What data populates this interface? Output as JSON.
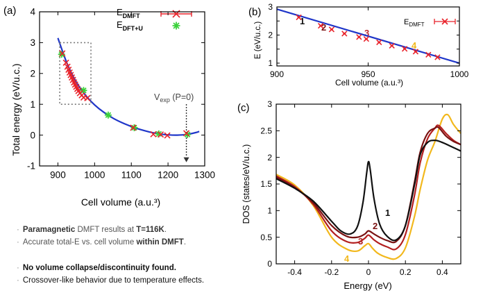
{
  "panel_a": {
    "label": "(a)",
    "ylabel": "Total energy (eV/u.c.)",
    "xlabel": "Cell volume (a.u.³)",
    "legend": [
      "E",
      "DMFT",
      "E",
      "DFT+U"
    ],
    "vexp_annotation": [
      "V",
      "exp",
      " (P=0)"
    ]
  },
  "panel_b": {
    "label": "(b)",
    "ylabel": "E (eV/u.c.)",
    "xlabel": "Cell volume (a.u.³)",
    "legend": [
      "E",
      "DMFT"
    ],
    "point_labels": [
      "1",
      "2",
      "3",
      "4"
    ]
  },
  "panel_c": {
    "label": "(c)",
    "ylabel": "DOS (states/eV/u.c.)",
    "xlabel": "Energy (eV)",
    "curve_labels": [
      "1",
      "2",
      "3",
      "4"
    ]
  },
  "notes": {
    "line1_bold": "Paramagnetic",
    "line1_mid": " DMFT results at ",
    "line1_end_bold": "T=116K",
    "line1_tail": ".",
    "line2_start": "Accurate total-E vs. cell volume ",
    "line2_bold": "within DMFT",
    "line2_tail": ".",
    "line3_bold": "No volume collapse/discontinuity found.",
    "line4": "Crossover-like behavior due to temperature effects."
  },
  "colors": {
    "dmft_marker": "#e8222a",
    "dft_marker": "#3ad13a",
    "fit_line": "#1f36c9",
    "curve1": "#111111",
    "curve2": "#7a1212",
    "curve3": "#b31f1f",
    "curve4": "#f2b81d"
  },
  "chart_data": [
    {
      "type": "scatter",
      "panel": "a",
      "xlim": [
        850,
        1300
      ],
      "ylim": [
        -1,
        4
      ],
      "xticks": [
        900,
        1000,
        1100,
        1200,
        1300
      ],
      "yticks": [
        -1,
        0,
        1,
        2,
        3,
        4
      ],
      "series": [
        {
          "name": "EDMFT",
          "x": [
            912,
            922,
            926,
            929,
            932,
            935,
            938,
            941,
            944,
            947,
            950,
            953,
            956,
            960,
            965,
            970,
            980,
            1105,
            1160,
            1180,
            1198,
            1250
          ],
          "y": [
            2.65,
            2.35,
            2.22,
            2.12,
            2.03,
            1.95,
            1.87,
            1.79,
            1.71,
            1.64,
            1.57,
            1.5,
            1.43,
            1.36,
            1.29,
            1.22,
            1.2,
            0.24,
            0.03,
            0.02,
            -0.01,
            0.06
          ]
        },
        {
          "name": "EDFT+U",
          "x": [
            910,
            970,
            1037,
            1108,
            1175,
            1253
          ],
          "y": [
            2.62,
            1.45,
            0.65,
            0.24,
            0.04,
            0.02
          ]
        },
        {
          "name": "fit",
          "x": [
            900,
            925,
            950,
            975,
            1000,
            1025,
            1050,
            1075,
            1100,
            1125,
            1150,
            1175,
            1200,
            1225,
            1250,
            1275,
            1285
          ],
          "y": [
            3.15,
            2.32,
            1.72,
            1.3,
            0.98,
            0.74,
            0.55,
            0.4,
            0.28,
            0.18,
            0.1,
            0.04,
            0.01,
            0.0,
            0.02,
            0.08,
            0.12
          ]
        }
      ],
      "inset_box": {
        "x": [
          905,
          990
        ],
        "y": [
          1.0,
          3.0
        ]
      },
      "vexp": 1250
    },
    {
      "type": "scatter",
      "panel": "b",
      "xlim": [
        900,
        1000
      ],
      "ylim": [
        0.9,
        3.0
      ],
      "xticks": [
        900,
        950,
        1000
      ],
      "yticks": [
        1,
        1.5,
        2,
        2.5,
        3
      ],
      "series": [
        {
          "name": "EDMFT",
          "x": [
            912,
            924,
            930,
            937,
            945,
            949,
            956,
            963,
            970,
            976,
            983,
            988
          ],
          "y": [
            2.63,
            2.33,
            2.2,
            2.05,
            1.93,
            1.86,
            1.74,
            1.62,
            1.51,
            1.41,
            1.3,
            1.21
          ]
        },
        {
          "name": "fit",
          "x": [
            900,
            1000
          ],
          "y": [
            2.92,
            1.0
          ]
        }
      ]
    },
    {
      "type": "line",
      "panel": "c",
      "xlim": [
        -0.5,
        0.5
      ],
      "ylim": [
        0,
        3
      ],
      "xticks": [
        -0.4,
        -0.2,
        0,
        0.2,
        0.4
      ],
      "yticks": [
        0,
        0.5,
        1,
        1.5,
        2,
        2.5,
        3
      ],
      "series": [
        {
          "name": "1",
          "x": [
            -0.5,
            -0.4,
            -0.3,
            -0.2,
            -0.15,
            -0.1,
            -0.06,
            -0.03,
            -0.01,
            0.0,
            0.01,
            0.03,
            0.06,
            0.1,
            0.15,
            0.2,
            0.25,
            0.28,
            0.32,
            0.36,
            0.4,
            0.45,
            0.5
          ],
          "y": [
            1.6,
            1.42,
            1.18,
            0.8,
            0.62,
            0.56,
            0.7,
            1.15,
            1.7,
            1.92,
            1.75,
            1.22,
            0.75,
            0.52,
            0.45,
            0.72,
            1.5,
            2.05,
            2.28,
            2.32,
            2.28,
            2.2,
            2.12
          ]
        },
        {
          "name": "2",
          "x": [
            -0.5,
            -0.4,
            -0.3,
            -0.2,
            -0.12,
            -0.06,
            -0.02,
            0.0,
            0.03,
            0.06,
            0.1,
            0.15,
            0.2,
            0.25,
            0.28,
            0.32,
            0.36,
            0.38,
            0.42,
            0.46,
            0.5
          ],
          "y": [
            1.63,
            1.43,
            1.15,
            0.72,
            0.52,
            0.5,
            0.56,
            0.62,
            0.56,
            0.5,
            0.44,
            0.42,
            0.72,
            1.55,
            2.1,
            2.45,
            2.55,
            2.56,
            2.4,
            2.3,
            2.24
          ]
        },
        {
          "name": "3",
          "x": [
            -0.5,
            -0.4,
            -0.3,
            -0.2,
            -0.12,
            -0.06,
            -0.02,
            0.0,
            0.03,
            0.06,
            0.1,
            0.15,
            0.2,
            0.25,
            0.28,
            0.32,
            0.36,
            0.38,
            0.42,
            0.46,
            0.5
          ],
          "y": [
            1.65,
            1.45,
            1.12,
            0.62,
            0.42,
            0.4,
            0.48,
            0.54,
            0.45,
            0.38,
            0.32,
            0.28,
            0.55,
            1.3,
            1.9,
            2.35,
            2.55,
            2.6,
            2.45,
            2.32,
            2.24
          ]
        },
        {
          "name": "4",
          "x": [
            -0.5,
            -0.4,
            -0.3,
            -0.2,
            -0.12,
            -0.06,
            -0.02,
            0.0,
            0.02,
            0.05,
            0.1,
            0.15,
            0.2,
            0.25,
            0.28,
            0.32,
            0.36,
            0.4,
            0.43,
            0.46,
            0.5
          ],
          "y": [
            1.68,
            1.48,
            1.1,
            0.5,
            0.28,
            0.24,
            0.34,
            0.38,
            0.3,
            0.2,
            0.12,
            0.1,
            0.3,
            0.9,
            1.4,
            1.95,
            2.3,
            2.72,
            2.8,
            2.62,
            2.45
          ]
        }
      ]
    }
  ]
}
